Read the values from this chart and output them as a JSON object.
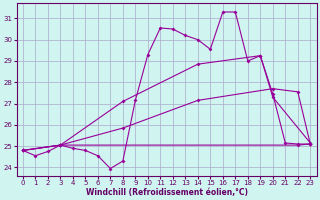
{
  "xlabel": "Windchill (Refroidissement éolien,°C)",
  "background_color": "#d0f5f0",
  "grid_color": "#aaaacc",
  "line_color": "#990099",
  "xlim": [
    -0.5,
    23.5
  ],
  "ylim": [
    23.6,
    31.7
  ],
  "yticks": [
    24,
    25,
    26,
    27,
    28,
    29,
    30,
    31
  ],
  "xticks": [
    0,
    1,
    2,
    3,
    4,
    5,
    6,
    7,
    8,
    9,
    10,
    11,
    12,
    13,
    14,
    15,
    16,
    17,
    18,
    19,
    20,
    21,
    22,
    23
  ],
  "line_jagged": {
    "x": [
      0,
      1,
      2,
      3,
      4,
      5,
      6,
      7,
      8,
      9,
      10,
      11,
      12,
      13,
      14,
      15,
      16,
      17,
      18,
      19,
      20,
      21,
      22,
      23
    ],
    "y": [
      24.8,
      24.55,
      24.75,
      25.05,
      24.9,
      24.8,
      24.55,
      23.95,
      24.3,
      27.15,
      29.3,
      30.55,
      30.5,
      30.2,
      30.0,
      29.55,
      31.3,
      31.3,
      29.0,
      29.25,
      27.45,
      25.15,
      25.1,
      25.1
    ]
  },
  "line_flat": {
    "x": [
      0,
      3,
      22,
      23
    ],
    "y": [
      24.8,
      25.05,
      25.05,
      25.1
    ]
  },
  "line_diag_low": {
    "x": [
      0,
      3,
      8,
      14,
      20,
      22,
      23
    ],
    "y": [
      24.8,
      25.05,
      25.85,
      27.15,
      27.7,
      27.55,
      25.1
    ]
  },
  "line_diag_high": {
    "x": [
      0,
      3,
      8,
      14,
      19,
      20,
      23
    ],
    "y": [
      24.8,
      25.05,
      27.1,
      28.85,
      29.25,
      27.3,
      25.15
    ]
  }
}
